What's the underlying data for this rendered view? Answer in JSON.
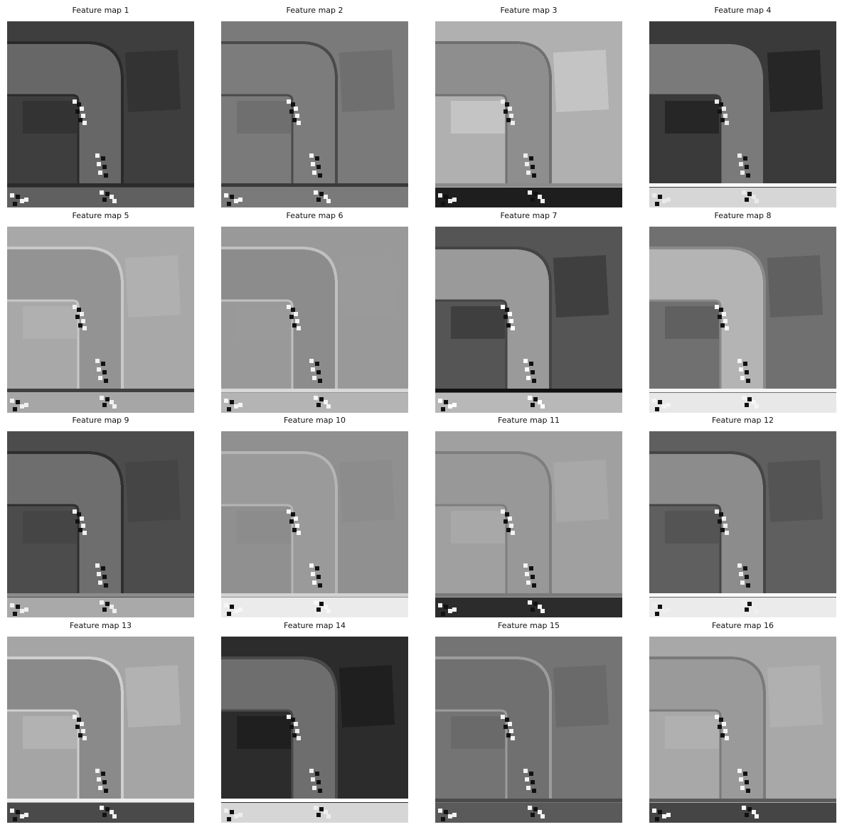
{
  "figure": {
    "panels": [
      {
        "title": "Feature map 1",
        "bg": "#3e3e3e",
        "road": "#676767",
        "edge": "#2a2a2a",
        "inner": "#333333",
        "strip": "#606060",
        "bar": "#2b2b2b",
        "marks": "#f2f2f2"
      },
      {
        "title": "Feature map 2",
        "bg": "#7a7a7a",
        "road": "#7c7c7c",
        "edge": "#4a4a4a",
        "inner": "#6f6f6f",
        "strip": "#7a7a7a",
        "bar": "#3a3a3a",
        "marks": "#f5f5f5"
      },
      {
        "title": "Feature map 3",
        "bg": "#b0b0b0",
        "road": "#8e8e8e",
        "edge": "#707070",
        "inner": "#c4c4c4",
        "strip": "#1e1e1e",
        "bar": "#8a8a8a",
        "marks": "#ededed"
      },
      {
        "title": "Feature map 4",
        "bg": "#3a3a3a",
        "road": "#7a7a7a",
        "edge": "#3a3a3a",
        "inner": "#262626",
        "strip": "#d6d6d6",
        "bar": "#ffffff",
        "marks": "#eaeaea"
      },
      {
        "title": "Feature map 5",
        "bg": "#a8a8a8",
        "road": "#939393",
        "edge": "#c8c8c8",
        "inner": "#b0b0b0",
        "strip": "#a6a6a6",
        "bar": "#404040",
        "marks": "#f0f0f0"
      },
      {
        "title": "Feature map 6",
        "bg": "#999999",
        "road": "#8c8c8c",
        "edge": "#c0c0c0",
        "inner": "#9a9a9a",
        "strip": "#b4b4b4",
        "bar": "#d8d8d8",
        "marks": "#f4f4f4"
      },
      {
        "title": "Feature map 7",
        "bg": "#555555",
        "road": "#9a9a9a",
        "edge": "#444444",
        "inner": "#3f3f3f",
        "strip": "#b8b8b8",
        "bar": "#111111",
        "marks": "#ffffff"
      },
      {
        "title": "Feature map 8",
        "bg": "#707070",
        "road": "#b4b4b4",
        "edge": "#8a8a8a",
        "inner": "#606060",
        "strip": "#e8e8e8",
        "bar": "#f5f5f5",
        "marks": "#f5f5f5"
      },
      {
        "title": "Feature map 9",
        "bg": "#4c4c4c",
        "road": "#6e6e6e",
        "edge": "#2f2f2f",
        "inner": "#454545",
        "strip": "#a9a9a9",
        "bar": "#8c8c8c",
        "marks": "#efefef"
      },
      {
        "title": "Feature map 10",
        "bg": "#909090",
        "road": "#9a9a9a",
        "edge": "#b5b5b5",
        "inner": "#8c8c8c",
        "strip": "#ebebeb",
        "bar": "#d2d2d2",
        "marks": "#f7f7f7"
      },
      {
        "title": "Feature map 11",
        "bg": "#a0a0a0",
        "road": "#989898",
        "edge": "#7e7e7e",
        "inner": "#a8a8a8",
        "strip": "#2c2c2c",
        "bar": "#7a7a7a",
        "marks": "#f2f2f2"
      },
      {
        "title": "Feature map 12",
        "bg": "#5f5f5f",
        "road": "#8c8c8c",
        "edge": "#454545",
        "inner": "#545454",
        "strip": "#ebebeb",
        "bar": "#ffffff",
        "marks": "#efefef"
      },
      {
        "title": "Feature map 13",
        "bg": "#a5a5a5",
        "road": "#8a8a8a",
        "edge": "#cfcfcf",
        "inner": "#b2b2b2",
        "strip": "#4a4a4a",
        "bar": "#f0f0f0",
        "marks": "#f0f0f0"
      },
      {
        "title": "Feature map 14",
        "bg": "#2c2c2c",
        "road": "#6e6e6e",
        "edge": "#4a4a4a",
        "inner": "#1f1f1f",
        "strip": "#d6d6d6",
        "bar": "#ffffff",
        "marks": "#eeeeee"
      },
      {
        "title": "Feature map 15",
        "bg": "#747474",
        "road": "#707070",
        "edge": "#9c9c9c",
        "inner": "#6a6a6a",
        "strip": "#5a5a5a",
        "bar": "#4a4a4a",
        "marks": "#f2f2f2"
      },
      {
        "title": "Feature map 16",
        "bg": "#a8a8a8",
        "road": "#9a9a9a",
        "edge": "#7a7a7a",
        "inner": "#b0b0b0",
        "strip": "#454545",
        "bar": "#5a5a5a",
        "marks": "#f5f5f5"
      }
    ]
  }
}
